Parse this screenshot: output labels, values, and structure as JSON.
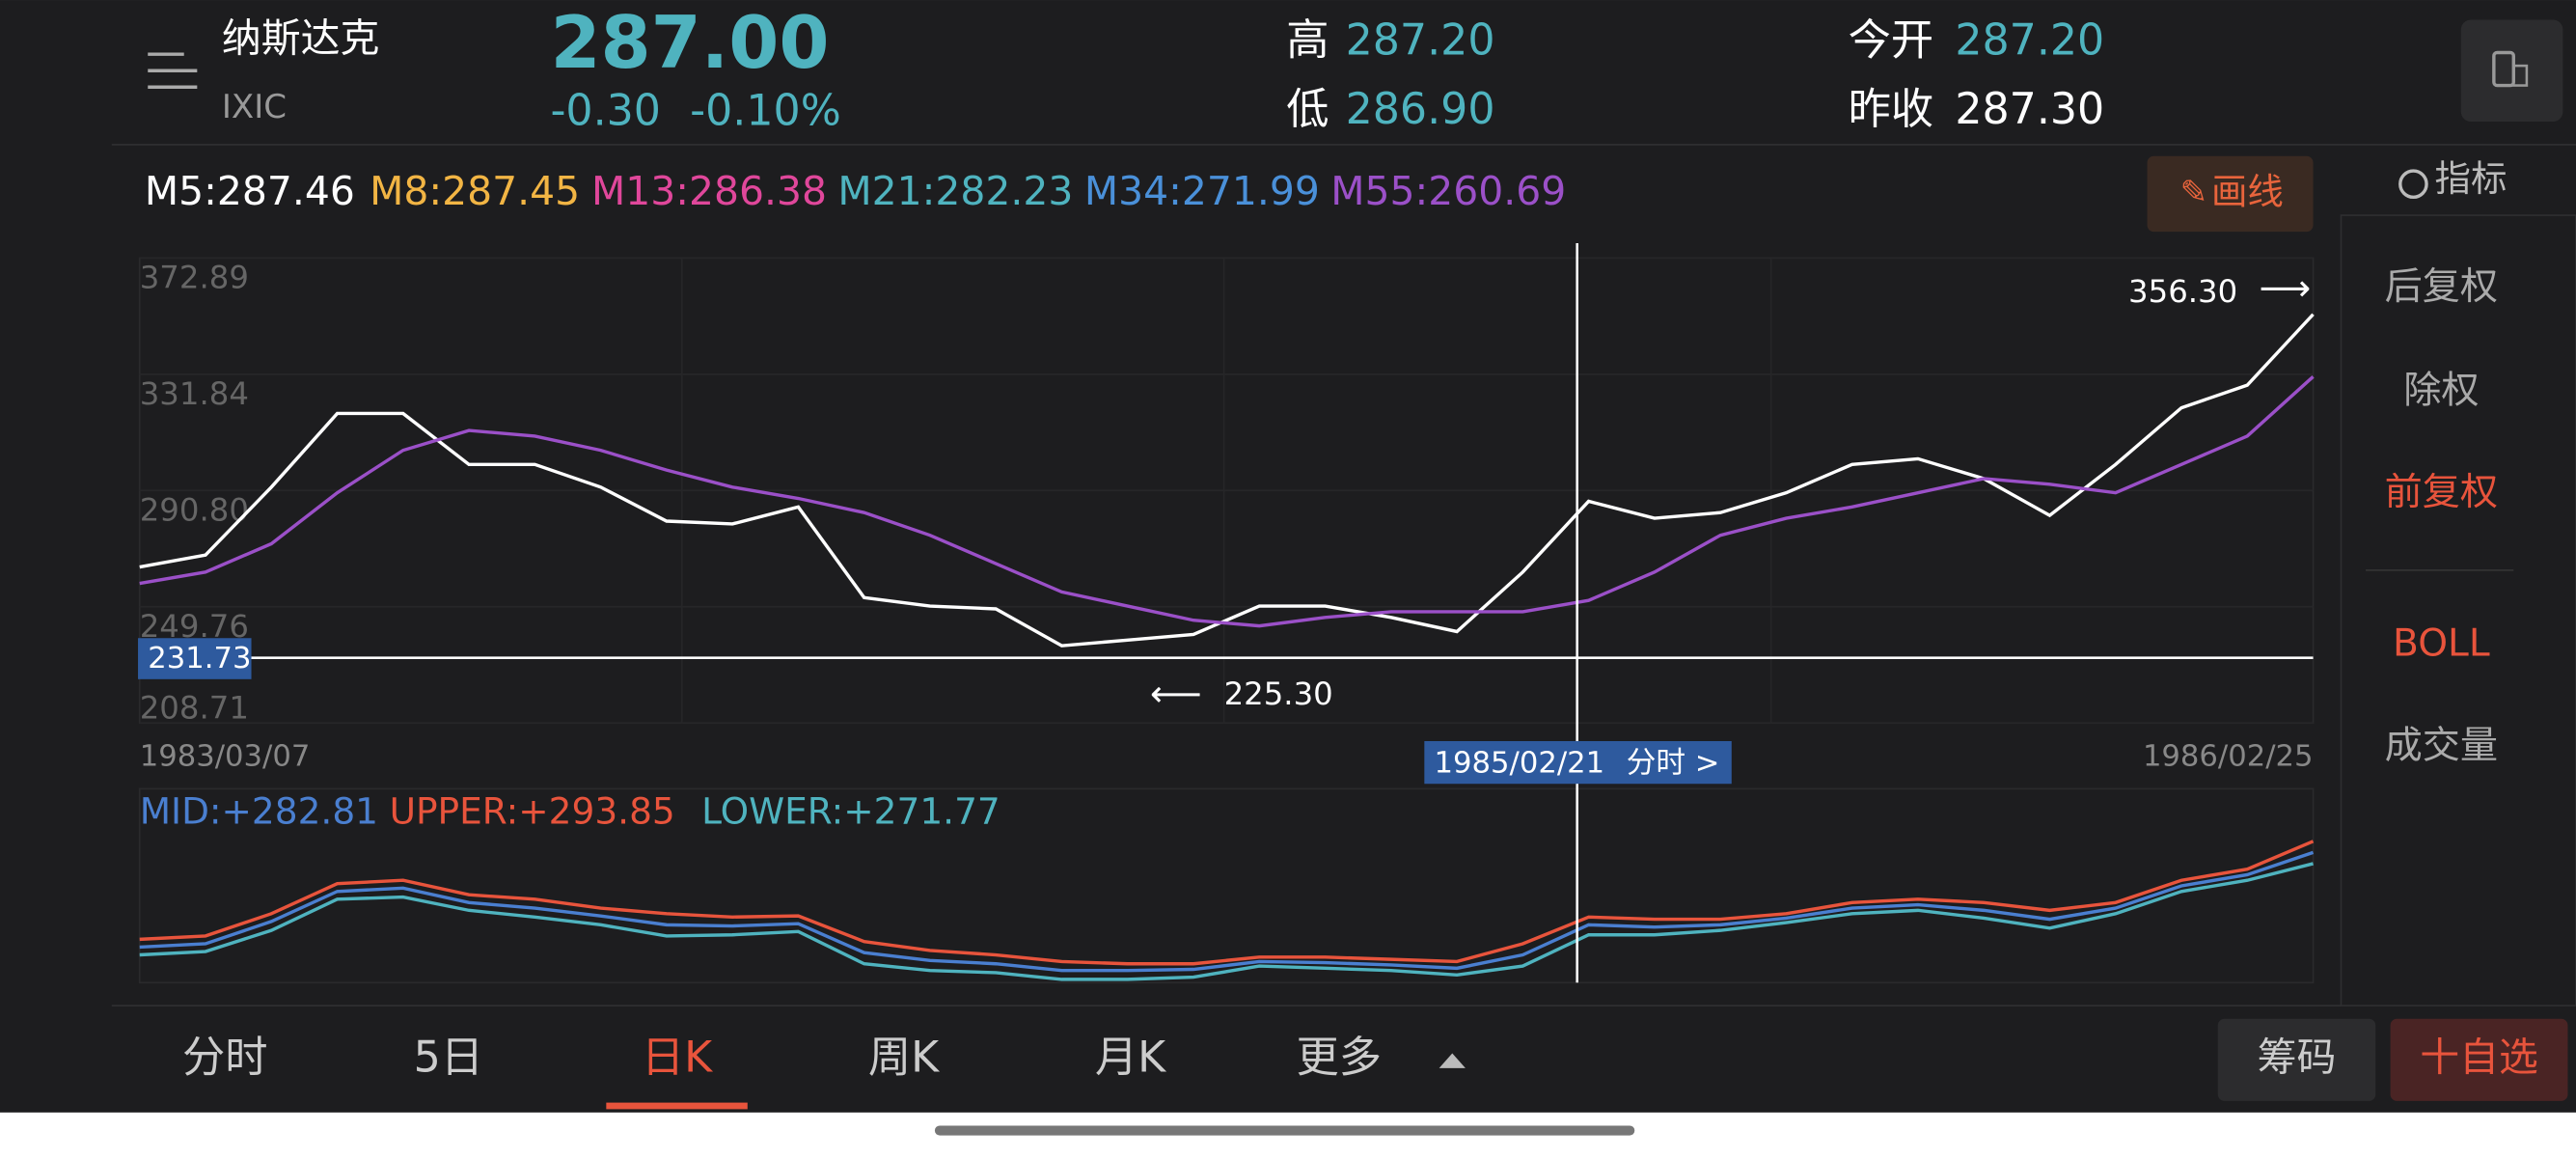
{
  "header": {
    "name": "纳斯达克",
    "code": "IXIC",
    "price": "287.00",
    "change": "-0.30",
    "change_pct": "-0.10%",
    "stats": [
      {
        "label": "高",
        "value": "287.20"
      },
      {
        "label": "低",
        "value": "286.90"
      },
      {
        "label": "今开",
        "value": "287.20"
      },
      {
        "label": "昨收",
        "value": "287.30"
      }
    ]
  },
  "ma_legend": [
    {
      "text": "M5:287.46",
      "color": "#ffffff"
    },
    {
      "text": "M8:287.45",
      "color": "#f2b544"
    },
    {
      "text": "M13:286.38",
      "color": "#e0479b"
    },
    {
      "text": "M21:282.23",
      "color": "#4fb3bf"
    },
    {
      "text": "M34:271.99",
      "color": "#4a90d9"
    },
    {
      "text": "M55:260.69",
      "color": "#9b50c8"
    }
  ],
  "draw_button": "画线",
  "indicator_button": "指标",
  "sidebar": [
    {
      "text": "后复权",
      "active": false
    },
    {
      "text": "除权",
      "active": false
    },
    {
      "text": "前复权",
      "active": true
    },
    {
      "text": "BOLL",
      "active": true
    },
    {
      "text": "成交量",
      "active": false
    }
  ],
  "chart": {
    "type": "line",
    "ylim": [
      208.71,
      372.89
    ],
    "yticks": [
      372.89,
      331.84,
      {
        "value": 290.8,
        "label": "290.80"
      },
      249.76,
      208.71
    ],
    "x_start": "1983/03/07",
    "x_end": "1986/02/25",
    "crosshair_date": "1985/02/21",
    "crosshair_link": "分时 >",
    "crosshair_value": 231.73,
    "max_label": {
      "value": 356.3,
      "label": "356.30"
    },
    "min_label": {
      "value": 225.3,
      "label": "225.30"
    },
    "series": [
      {
        "name": "M5",
        "color": "#ffffff",
        "values": [
          263.8,
          268,
          292,
          318,
          318,
          300,
          300,
          292,
          280,
          279,
          285,
          253,
          250,
          249,
          236,
          238,
          240,
          250,
          250,
          246,
          241,
          262,
          287,
          281,
          283,
          290,
          300,
          302,
          295,
          282,
          300,
          320,
          328,
          353
        ]
      },
      {
        "name": "M55",
        "color": "#9b50c8",
        "values": [
          258,
          262,
          272,
          290,
          305,
          312,
          310,
          305,
          298,
          292,
          288,
          283,
          275,
          265,
          255,
          250,
          245,
          243,
          246,
          248,
          248,
          248,
          252,
          262,
          275,
          281,
          285,
          290,
          295,
          293,
          290,
          300,
          310,
          331
        ]
      }
    ]
  },
  "boll": {
    "type": "line",
    "legend": [
      {
        "text": "MID:+282.81",
        "color": "#4a7fd0"
      },
      {
        "text": "UPPER:+293.85",
        "color": "#e8543c"
      },
      {
        "text": "LOWER:+271.77",
        "color": "#4fb3bf"
      }
    ],
    "series": [
      {
        "name": "UPPER",
        "color": "#e8543c",
        "values": [
          272,
          275,
          295,
          322,
          325,
          312,
          308,
          300,
          295,
          292,
          293,
          270,
          262,
          258,
          252,
          250,
          250,
          256,
          256,
          254,
          252,
          268,
          292,
          290,
          290,
          295,
          305,
          308,
          305,
          298,
          305,
          325,
          335,
          360
        ]
      },
      {
        "name": "MID",
        "color": "#4a7fd0",
        "values": [
          265,
          268,
          288,
          315,
          318,
          305,
          300,
          293,
          285,
          284,
          286,
          260,
          253,
          250,
          244,
          244,
          245,
          252,
          251,
          249,
          246,
          258,
          285,
          283,
          285,
          291,
          300,
          303,
          298,
          290,
          300,
          320,
          330,
          350
        ]
      },
      {
        "name": "LOWER",
        "color": "#4fb3bf",
        "values": [
          258,
          261,
          280,
          308,
          310,
          298,
          292,
          285,
          275,
          276,
          279,
          250,
          244,
          242,
          236,
          236,
          238,
          248,
          246,
          244,
          240,
          248,
          276,
          276,
          280,
          287,
          295,
          298,
          291,
          282,
          295,
          315,
          325,
          340
        ]
      }
    ]
  },
  "tabs": {
    "items": [
      "分时",
      "5日",
      "日K",
      "周K",
      "月K",
      "更多"
    ],
    "active": 2
  },
  "buttons": {
    "chips": "筹码",
    "watchlist": "十自选"
  }
}
